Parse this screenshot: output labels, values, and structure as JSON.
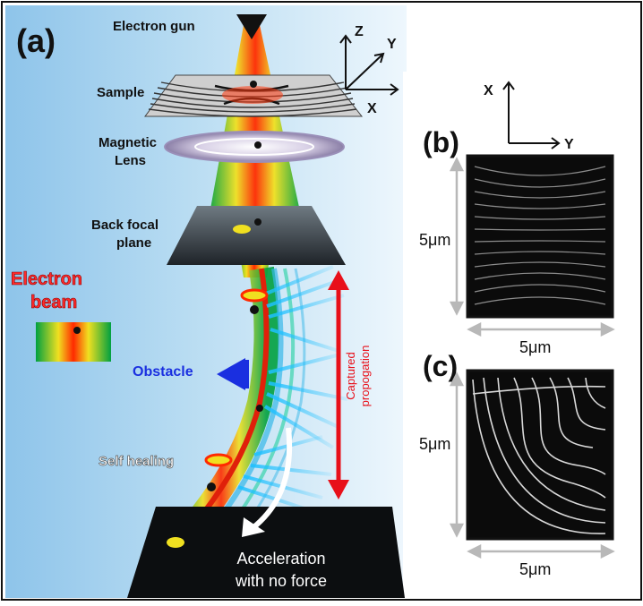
{
  "panels": {
    "a": {
      "label": "(a)"
    },
    "b": {
      "label": "(b)"
    },
    "c": {
      "label": "(c)"
    }
  },
  "labels": {
    "electron_gun": "Electron gun",
    "sample": "Sample",
    "magnetic_lens_line1": "Magnetic",
    "magnetic_lens_line2": "Lens",
    "back_focal_line1": "Back focal",
    "back_focal_line2": "plane",
    "electron_beam_line1": "Electron",
    "electron_beam_line2": "beam",
    "obstacle": "Obstacle",
    "captured_line1": "Captured",
    "captured_line2": "propogation",
    "self_healing": "Self healing",
    "acceleration_line1": "Acceleration",
    "acceleration_line2": "with no force"
  },
  "axes_3d": {
    "z": "Z",
    "y": "Y",
    "x": "X"
  },
  "axes_2d": {
    "x": "X",
    "y": "Y"
  },
  "scale": {
    "b_vertical": "5μm",
    "b_horizontal": "5μm",
    "c_vertical": "5μm",
    "c_horizontal": "5μm"
  },
  "colors": {
    "beam_gradient": [
      "#00a040",
      "#f0e020",
      "#ff2a00",
      "#f0e020",
      "#00a040"
    ],
    "label_red": "#ff2b2b",
    "label_blue": "#1a2fe0",
    "arrow_red": "#e8101a",
    "background_blue": "#a9d2ee"
  }
}
